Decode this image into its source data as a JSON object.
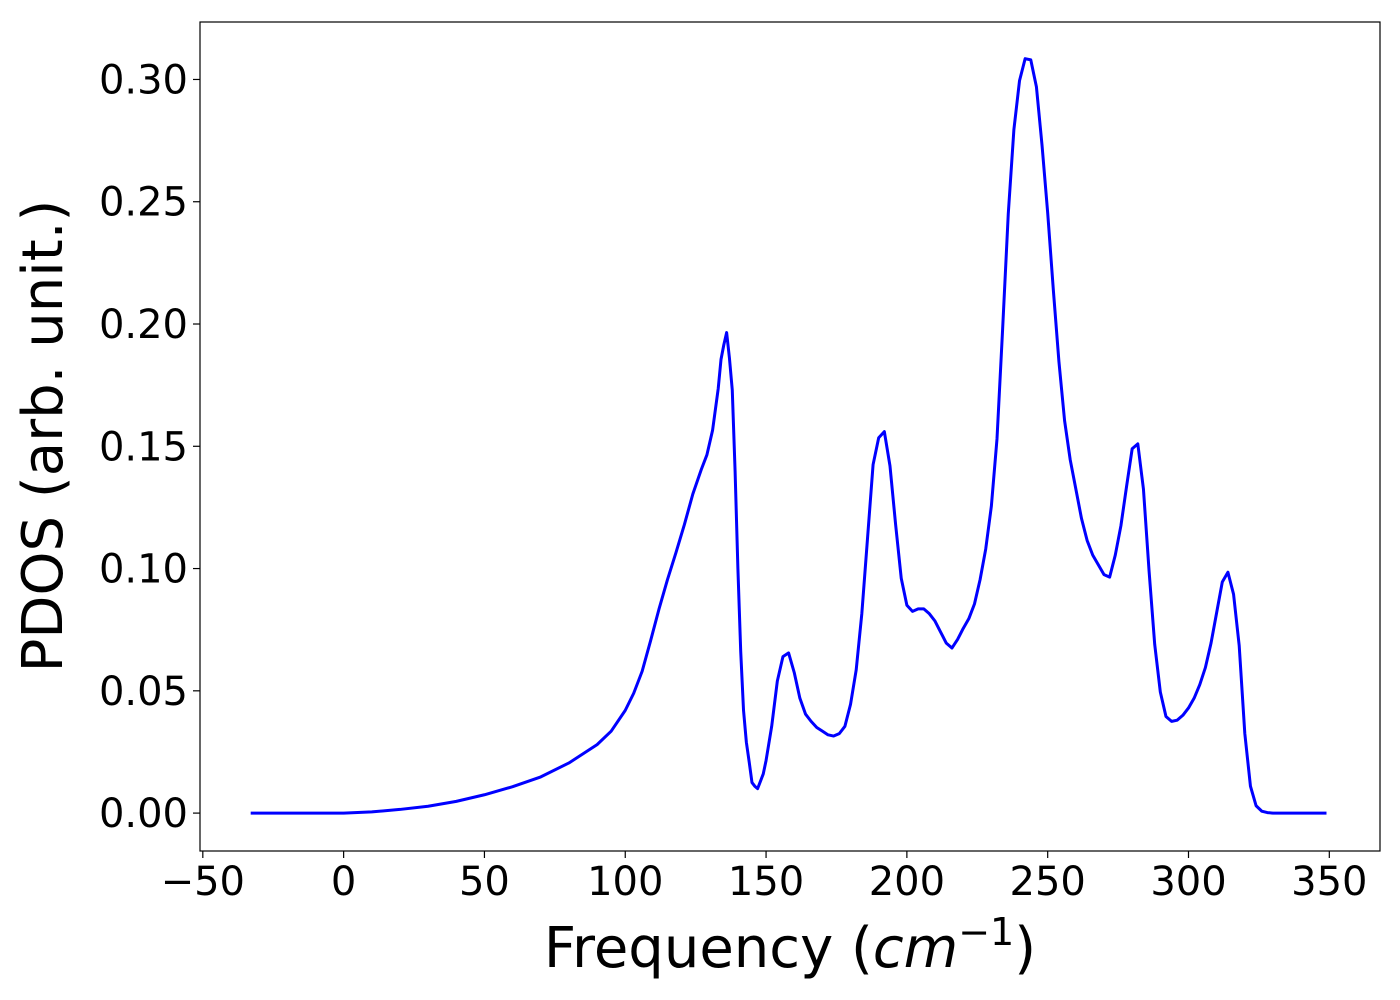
{
  "chart_data": {
    "type": "line",
    "title": "",
    "xlabel": {
      "text": "Frequency (",
      "math": "cm",
      "sup": "−1",
      "close": ")"
    },
    "ylabel": "PDOS (arb. unit.)",
    "xlim": [
      -51,
      368
    ],
    "ylim": [
      -0.0155,
      0.3235
    ],
    "xticks": [
      -50,
      0,
      50,
      100,
      150,
      200,
      250,
      300,
      350
    ],
    "xtick_labels": [
      "−50",
      "0",
      "50",
      "100",
      "150",
      "200",
      "250",
      "300",
      "350"
    ],
    "yticks": [
      0.0,
      0.05,
      0.1,
      0.15,
      0.2,
      0.25,
      0.3
    ],
    "ytick_labels": [
      "0.00",
      "0.05",
      "0.10",
      "0.15",
      "0.20",
      "0.25",
      "0.30"
    ],
    "grid": false,
    "legend": false,
    "series": [
      {
        "color": "#0000ff",
        "x": [
          -33,
          0,
          10,
          20,
          30,
          40,
          50,
          60,
          70,
          80,
          90,
          95,
          100,
          103,
          106,
          109,
          112,
          115,
          118,
          121,
          124,
          127,
          129,
          131,
          133,
          134,
          135,
          136,
          137,
          138,
          139,
          140,
          141,
          142,
          143,
          144,
          145,
          146,
          147,
          148,
          149,
          150,
          152,
          154,
          156,
          158,
          160,
          162,
          164,
          166,
          168,
          170,
          172,
          174,
          176,
          178,
          180,
          182,
          184,
          186,
          188,
          190,
          192,
          194,
          196,
          198,
          200,
          202,
          204,
          206,
          208,
          210,
          212,
          214,
          216,
          218,
          220,
          222,
          224,
          226,
          228,
          230,
          232,
          234,
          236,
          238,
          240,
          242,
          244,
          246,
          248,
          250,
          252,
          254,
          256,
          258,
          260,
          262,
          264,
          266,
          268,
          270,
          272,
          274,
          276,
          278,
          280,
          282,
          284,
          286,
          288,
          290,
          292,
          294,
          296,
          298,
          300,
          302,
          304,
          306,
          308,
          310,
          312,
          314,
          316,
          318,
          320,
          322,
          324,
          326,
          328,
          330,
          340,
          349
        ],
        "y": [
          0.0,
          0.0,
          0.0005,
          0.0015,
          0.0028,
          0.0048,
          0.0075,
          0.0108,
          0.0148,
          0.0205,
          0.028,
          0.0335,
          0.042,
          0.049,
          0.058,
          0.0705,
          0.0835,
          0.0955,
          0.1065,
          0.118,
          0.1305,
          0.1405,
          0.1465,
          0.1565,
          0.1735,
          0.1855,
          0.1915,
          0.1965,
          0.186,
          0.173,
          0.14,
          0.1,
          0.066,
          0.042,
          0.029,
          0.021,
          0.0125,
          0.011,
          0.01,
          0.013,
          0.016,
          0.0215,
          0.0355,
          0.054,
          0.064,
          0.0655,
          0.0575,
          0.047,
          0.0405,
          0.0375,
          0.035,
          0.0335,
          0.032,
          0.0315,
          0.0325,
          0.0355,
          0.0445,
          0.0585,
          0.0815,
          0.112,
          0.1425,
          0.1535,
          0.156,
          0.142,
          0.118,
          0.096,
          0.085,
          0.0825,
          0.0835,
          0.0835,
          0.0815,
          0.0785,
          0.074,
          0.0695,
          0.0675,
          0.071,
          0.0755,
          0.0795,
          0.0855,
          0.0955,
          0.108,
          0.1255,
          0.153,
          0.198,
          0.245,
          0.2795,
          0.2995,
          0.3085,
          0.308,
          0.297,
          0.273,
          0.2455,
          0.214,
          0.1845,
          0.1605,
          0.1445,
          0.1325,
          0.1205,
          0.1115,
          0.1055,
          0.1015,
          0.0975,
          0.0965,
          0.1055,
          0.1175,
          0.1335,
          0.149,
          0.151,
          0.1325,
          0.099,
          0.069,
          0.0495,
          0.0395,
          0.0375,
          0.038,
          0.04,
          0.043,
          0.047,
          0.0525,
          0.0595,
          0.0695,
          0.082,
          0.0945,
          0.0985,
          0.0895,
          0.0685,
          0.0325,
          0.011,
          0.003,
          0.0008,
          0.0002,
          0.0,
          0.0,
          0.0
        ]
      }
    ]
  }
}
